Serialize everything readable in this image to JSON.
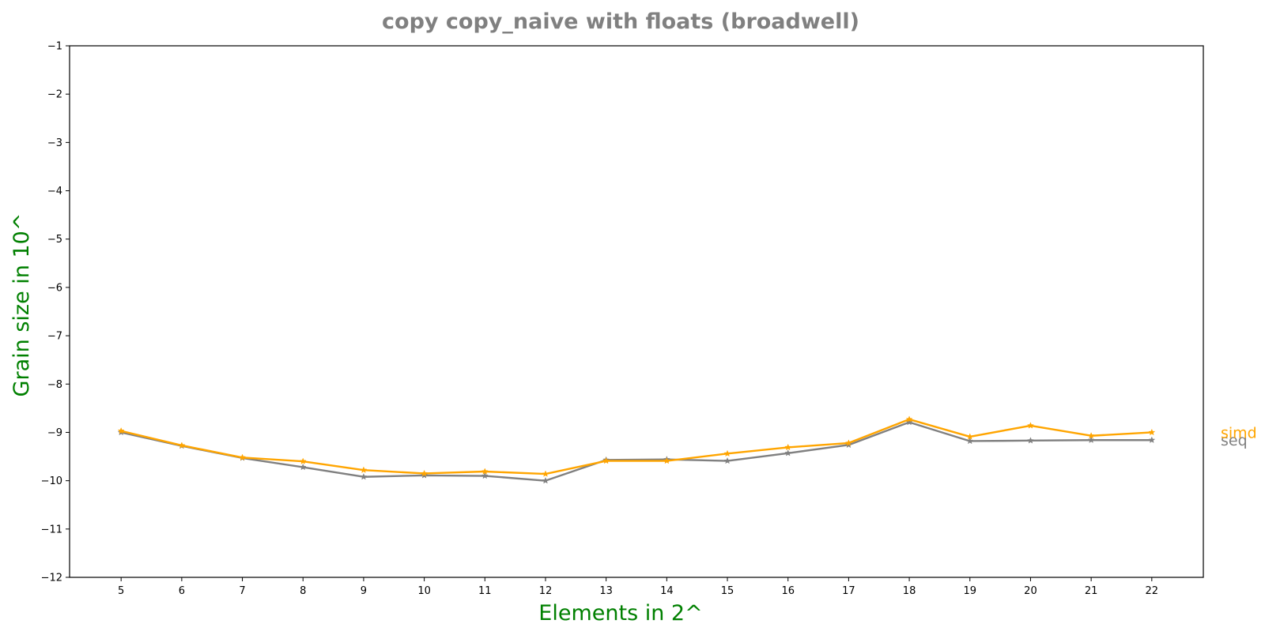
{
  "chart_data": {
    "type": "line",
    "title": "copy copy_naive with floats  (broadwell)",
    "xlabel": "Elements in 2^",
    "ylabel": "Grain size in 10^",
    "xlim": [
      4.15,
      22.85
    ],
    "ylim": [
      -12,
      -1
    ],
    "x": [
      5,
      6,
      7,
      8,
      9,
      10,
      11,
      12,
      13,
      14,
      15,
      16,
      17,
      18,
      19,
      20,
      21,
      22
    ],
    "x_ticks": [
      "5",
      "6",
      "7",
      "8",
      "9",
      "10",
      "11",
      "12",
      "13",
      "14",
      "15",
      "16",
      "17",
      "18",
      "19",
      "20",
      "21",
      "22"
    ],
    "y_ticks": [
      -1,
      -2,
      -3,
      -4,
      -5,
      -6,
      -7,
      -8,
      -9,
      -10,
      -11,
      -12
    ],
    "y_tick_labels": [
      "−1",
      "−2",
      "−3",
      "−4",
      "−5",
      "−6",
      "−7",
      "−8",
      "−9",
      "−10",
      "−11",
      "−12"
    ],
    "grid": false,
    "marker": "star",
    "series": [
      {
        "name": "seq",
        "color": "#808080",
        "values": [
          -9.0,
          -9.28,
          -9.53,
          -9.72,
          -9.92,
          -9.89,
          -9.9,
          -10.0,
          -9.57,
          -9.56,
          -9.59,
          -9.43,
          -9.26,
          -8.79,
          -9.18,
          -9.17,
          -9.16,
          -9.16
        ]
      },
      {
        "name": "simd",
        "color": "#FFA500",
        "values": [
          -8.97,
          -9.27,
          -9.52,
          -9.6,
          -9.78,
          -9.85,
          -9.81,
          -9.86,
          -9.59,
          -9.59,
          -9.44,
          -9.31,
          -9.22,
          -8.73,
          -9.09,
          -8.86,
          -9.07,
          -9.0
        ]
      }
    ],
    "colors": {
      "title": "#808080",
      "axis_labels": "#008000",
      "axes": "#000000"
    }
  }
}
